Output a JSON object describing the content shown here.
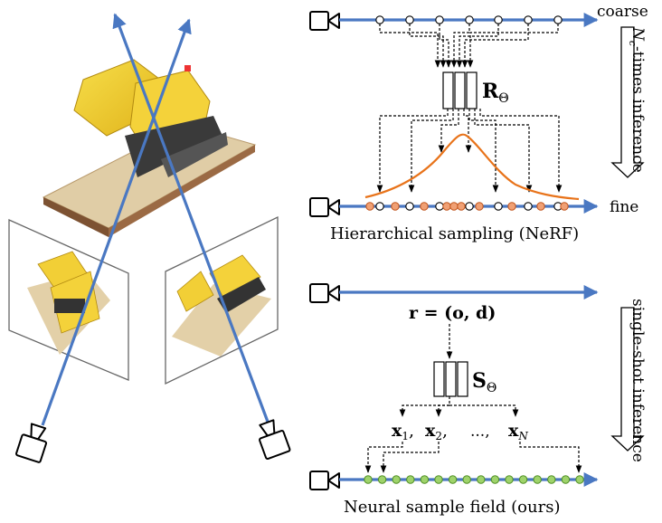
{
  "hier": {
    "coarse_label": "coarse",
    "fine_label": "fine",
    "net_symbol": "R",
    "net_sub": "Θ",
    "side_label_sym": "N",
    "side_label_sub": "c",
    "side_label_rest": "-times inference",
    "caption": "Hierarchical sampling (NeRF)"
  },
  "ours": {
    "ray_eq": "r = (o, d)",
    "net_symbol": "S",
    "net_sub": "Θ",
    "x1": "x",
    "x1_sub": "1",
    "x2": "x",
    "x2_sub": "2",
    "comma": ",",
    "ellipsis": "...,",
    "xn": "x",
    "xn_sub": "N",
    "side_label": "single-shot inference",
    "caption": "Neural sample field (ours)"
  },
  "colors": {
    "ray": "#4a78c2",
    "density_curve": "#e8731a",
    "fine_sample": "#f0a074",
    "nsf_sample": "#9fd36b"
  },
  "icons": [
    "camera-icon",
    "neural-network-icon",
    "down-arrow-icon"
  ]
}
